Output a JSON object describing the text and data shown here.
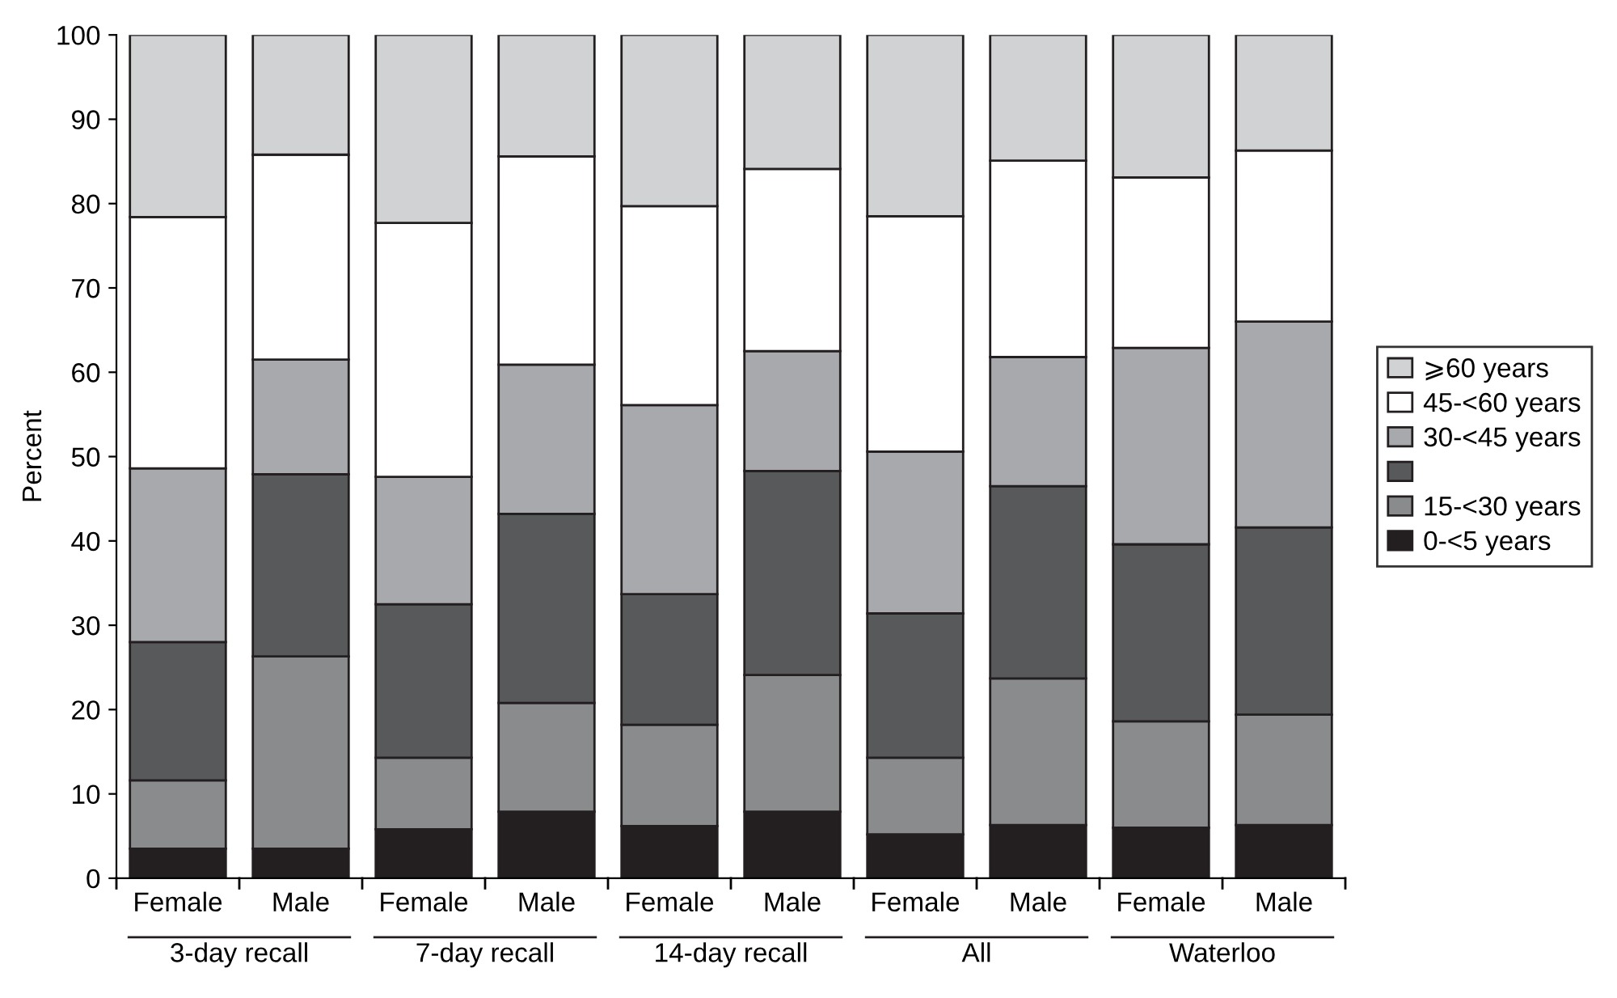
{
  "chart_data": {
    "type": "bar",
    "stacked": true,
    "ylabel": "Percent",
    "categories": [
      "Female",
      "Male",
      "Female",
      "Male",
      "Female",
      "Male",
      "Female",
      "Male",
      "Female",
      "Male"
    ],
    "series": [
      {
        "name": "0-<5 years",
        "color": "#231f20",
        "values": [
          3.5,
          3.5,
          5.8,
          7.9,
          6.2,
          7.9,
          5.2,
          6.3,
          6.0,
          6.3
        ]
      },
      {
        "name": "15-<30 years",
        "color": "#8a8b8d",
        "values": [
          8.1,
          22.8,
          8.5,
          12.9,
          12.0,
          16.2,
          9.1,
          17.4,
          12.6,
          13.1
        ]
      },
      {
        "color": "#58595b",
        "values": [
          16.4,
          21.6,
          18.2,
          22.4,
          15.5,
          24.2,
          17.1,
          22.8,
          21.0,
          22.2
        ]
      },
      {
        "name": "30-<45 years",
        "color": "#a8a9ac",
        "values": [
          20.6,
          13.6,
          15.1,
          17.7,
          22.4,
          14.2,
          19.2,
          15.3,
          23.3,
          24.4
        ]
      },
      {
        "name": "45-<60 years",
        "color": "#ffffff",
        "values": [
          29.8,
          24.3,
          30.1,
          24.7,
          23.6,
          21.6,
          27.9,
          23.3,
          20.2,
          20.3
        ]
      },
      {
        "name": "⩾60 years",
        "color": "#d1d2d4",
        "values": [
          21.6,
          14.2,
          22.3,
          14.4,
          20.3,
          15.9,
          21.5,
          14.9,
          16.9,
          13.7
        ]
      }
    ],
    "annotations": [
      "3-day recall",
      "7-day recall",
      "14-day recall",
      "All",
      "Waterloo"
    ],
    "ylim": [
      0,
      100
    ],
    "yticks": [
      0,
      10,
      20,
      30,
      40,
      50,
      60,
      70,
      80,
      90,
      100
    ],
    "grid": false,
    "legend": "right"
  }
}
